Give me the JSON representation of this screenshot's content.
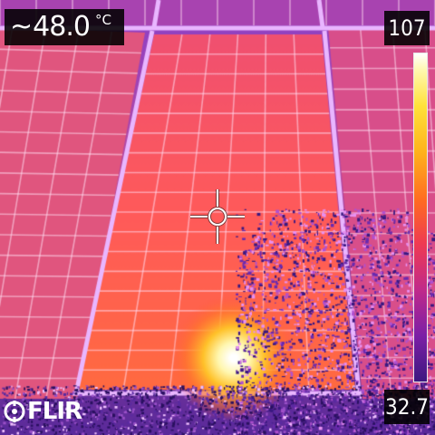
{
  "temperature": {
    "approx_symbol": "~",
    "value": "48.0",
    "unit": "°C"
  },
  "scale": {
    "max": "107",
    "min": "32.7"
  },
  "logo": {
    "text": "FLIR"
  },
  "palette": [
    "#3d1880",
    "#7c1fa6",
    "#c02a8a",
    "#ef3a52",
    "#ff6a22",
    "#ffb21c",
    "#ffe13a",
    "#ffffff"
  ],
  "icons": {
    "crosshair": "spot-meter-crosshair-icon",
    "brand": "flir-logo-icon"
  }
}
